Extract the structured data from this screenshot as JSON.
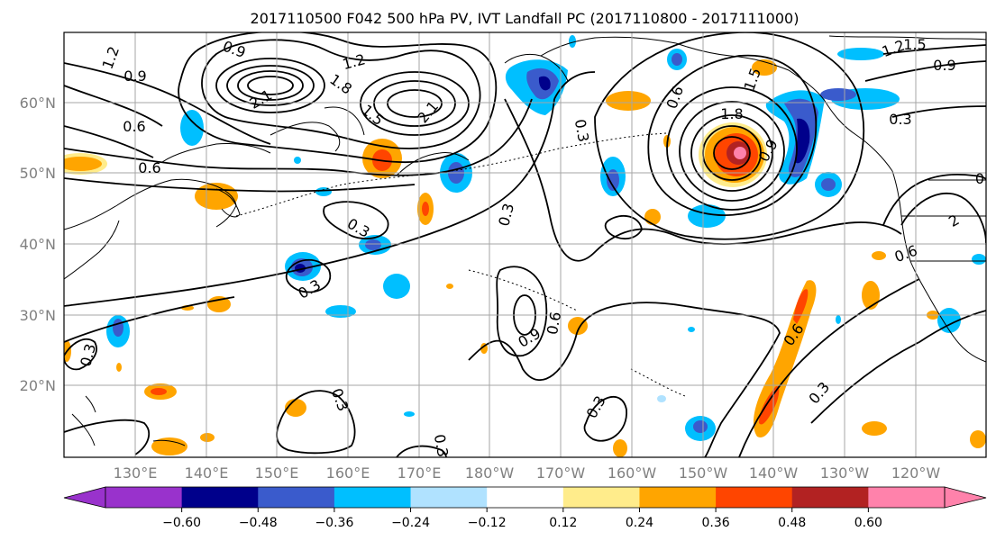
{
  "title": "2017110500 F042 500 hPa PV, IVT Landfall PC (2017110800 - 2017111000)",
  "map": {
    "lat_labels": [
      "60°N",
      "50°N",
      "40°N",
      "30°N",
      "20°N"
    ],
    "lon_labels": [
      "130°E",
      "140°E",
      "150°E",
      "160°E",
      "170°E",
      "180°W",
      "170°W",
      "160°W",
      "150°W",
      "140°W",
      "130°W",
      "120°W"
    ],
    "contour_labels": [
      {
        "text": "1.2"
      },
      {
        "text": "0.9"
      },
      {
        "text": "2.1"
      },
      {
        "text": "1.8"
      },
      {
        "text": "1.5"
      },
      {
        "text": "1.2"
      },
      {
        "text": "2.1"
      },
      {
        "text": "0.6"
      },
      {
        "text": "0.9"
      },
      {
        "text": "0.6"
      },
      {
        "text": "0.3"
      },
      {
        "text": "0.3"
      },
      {
        "text": "0.3"
      },
      {
        "text": "0.3"
      },
      {
        "text": "0.3"
      },
      {
        "text": "0.9"
      },
      {
        "text": "0.6"
      },
      {
        "text": "0.3"
      },
      {
        "text": "0.6"
      },
      {
        "text": "1.5"
      },
      {
        "text": "1.8"
      },
      {
        "text": "0.9"
      },
      {
        "text": "1.5"
      },
      {
        "text": "1.2"
      },
      {
        "text": "0.9"
      },
      {
        "text": "0.3"
      },
      {
        "text": "0.6"
      },
      {
        "text": "2"
      },
      {
        "text": "0"
      },
      {
        "text": "0.6"
      },
      {
        "text": "0.3"
      },
      {
        "text": "0.3"
      },
      {
        "text": "0.3"
      }
    ]
  },
  "colorbar": {
    "colors": [
      "#9932cc",
      "#00008b",
      "#3a5bcc",
      "#00bfff",
      "#b0e2ff",
      "#ffffff",
      "#ffec8b",
      "#ffa500",
      "#ff4500",
      "#b22222",
      "#ff82ab"
    ],
    "tick_labels": [
      "−0.60",
      "−0.48",
      "−0.36",
      "−0.24",
      "−0.12",
      "0.12",
      "0.24",
      "0.36",
      "0.48",
      "0.60"
    ]
  }
}
